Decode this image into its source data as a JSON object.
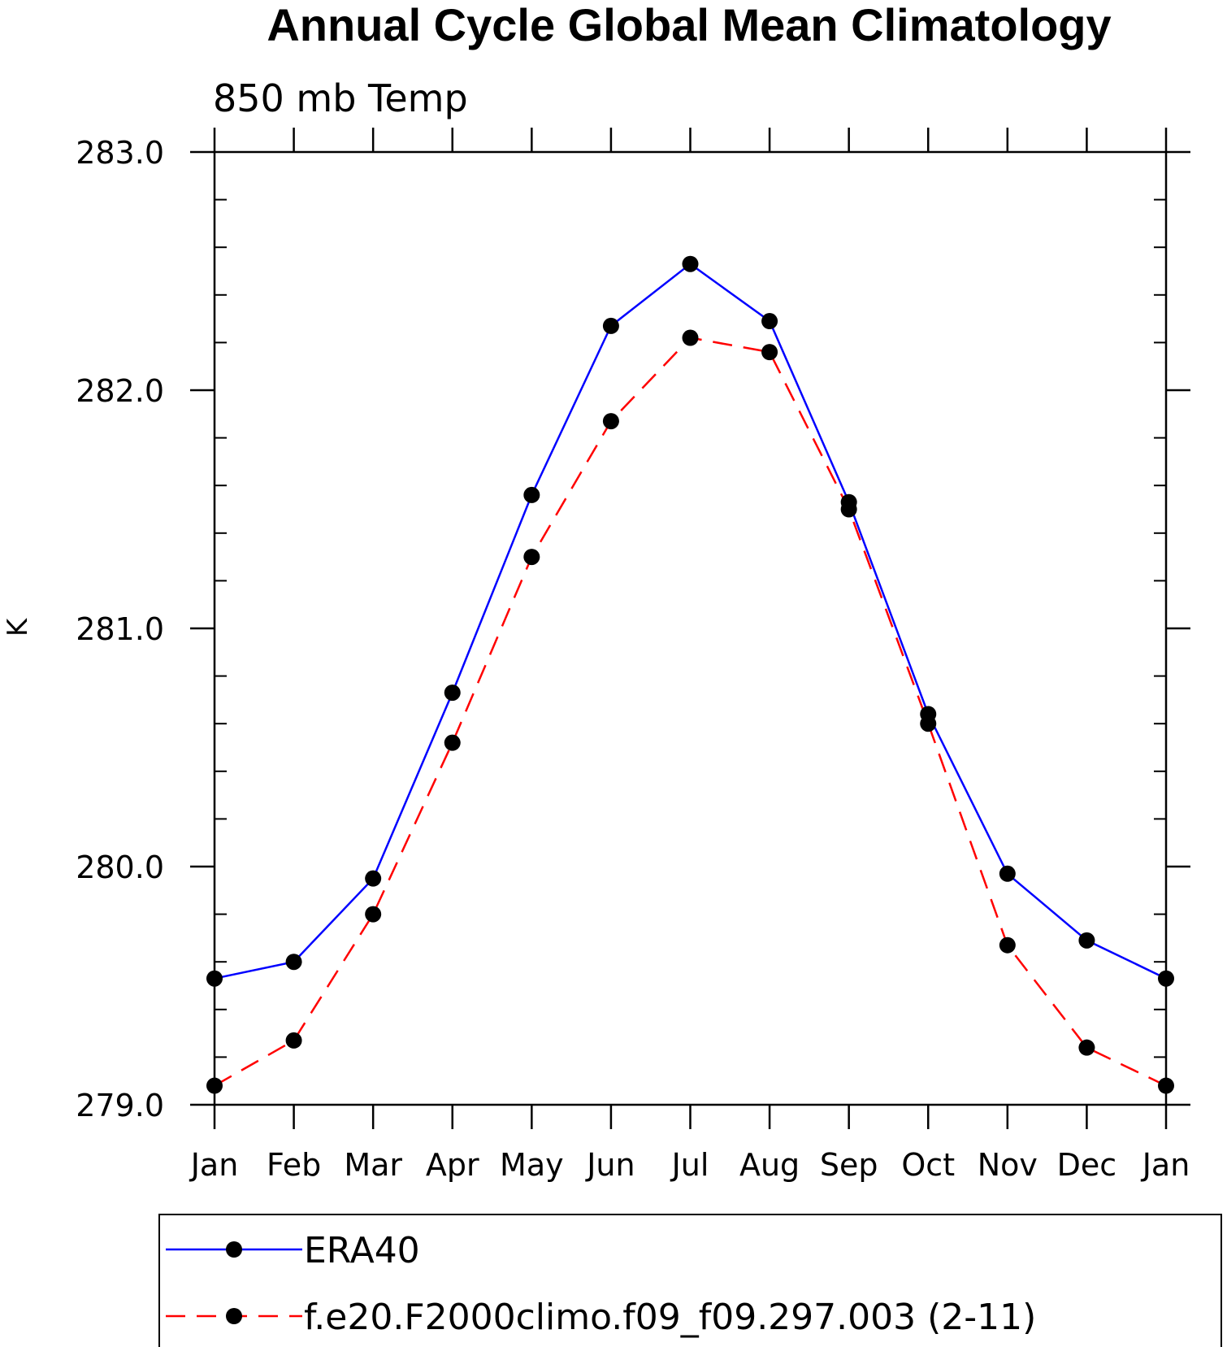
{
  "chart_data": {
    "type": "line",
    "title": "Annual Cycle Global Mean Climatology",
    "subtitle": "850 mb Temp",
    "xlabel": "",
    "ylabel": "K",
    "categories": [
      "Jan",
      "Feb",
      "Mar",
      "Apr",
      "May",
      "Jun",
      "Jul",
      "Aug",
      "Sep",
      "Oct",
      "Nov",
      "Dec",
      "Jan"
    ],
    "ylim": [
      279.0,
      283.0
    ],
    "yticks": [
      "279.0",
      "280.0",
      "281.0",
      "282.0",
      "283.0"
    ],
    "y_minor_step": 0.2,
    "grid": false,
    "legend_position": "bottom",
    "series": [
      {
        "name": "ERA40",
        "color": "#0000ff",
        "dash": "solid",
        "marker": "filled-circle",
        "values": [
          279.53,
          279.6,
          279.95,
          280.73,
          281.56,
          282.27,
          282.53,
          282.29,
          281.53,
          280.64,
          279.97,
          279.69,
          279.53
        ]
      },
      {
        "name": "f.e20.F2000climo.f09_f09.297.003 (2-11)",
        "color": "#ff0000",
        "dash": "dashed",
        "marker": "filled-circle",
        "values": [
          279.08,
          279.27,
          279.8,
          280.52,
          281.3,
          281.87,
          282.22,
          282.16,
          281.5,
          280.6,
          279.67,
          279.24,
          279.08
        ]
      }
    ]
  }
}
